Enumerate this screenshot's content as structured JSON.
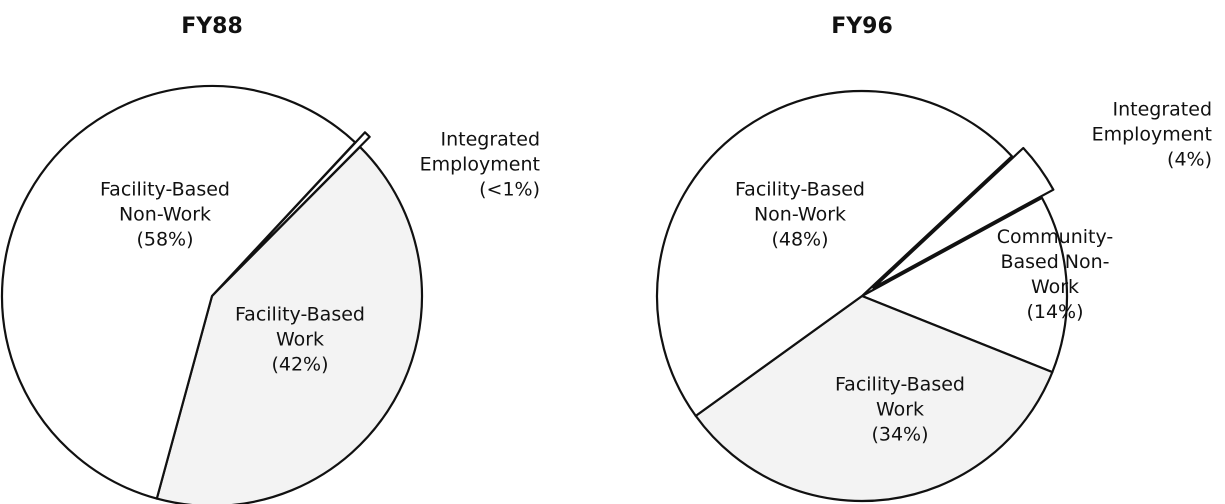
{
  "chart_data": [
    {
      "type": "pie",
      "title": "FY88",
      "categories": [
        "Integrated Employment",
        "Facility-Based Work",
        "Facility-Based Non-Work"
      ],
      "values": [
        0.5,
        42,
        58
      ],
      "value_labels": [
        "(<1%)",
        "(42%)",
        "(58%)"
      ],
      "colors": [
        "#ffffff",
        "#f3f3f3",
        "#ffffff"
      ]
    },
    {
      "type": "pie",
      "title": "FY96",
      "categories": [
        "Integrated Employment",
        "Community-Based Non-Work",
        "Facility-Based Work",
        "Facility-Based Non-Work"
      ],
      "values": [
        4,
        14,
        34,
        48
      ],
      "value_labels": [
        "(4%)",
        "(14%)",
        "(34%)",
        "(48%)"
      ],
      "colors": [
        "#ffffff",
        "#ffffff",
        "#f3f3f3",
        "#ffffff"
      ]
    }
  ]
}
